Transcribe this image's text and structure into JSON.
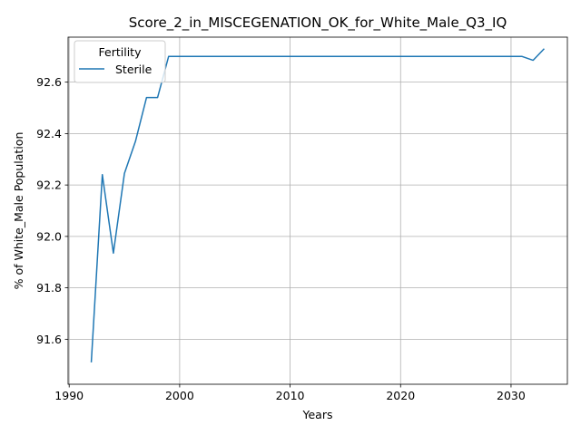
{
  "chart_data": {
    "type": "line",
    "title": "Score_2_in_MISCEGENATION_OK_for_White_Male_Q3_IQ",
    "xlabel": "Years",
    "ylabel": "% of White_Male Population",
    "xlim": [
      1989.9,
      2035.1
    ],
    "ylim": [
      91.425,
      92.775
    ],
    "xticks": [
      1990,
      2000,
      2010,
      2020,
      2030
    ],
    "xtick_labels": [
      "1990",
      "2000",
      "2010",
      "2020",
      "2030"
    ],
    "yticks": [
      91.6,
      91.8,
      92.0,
      92.2,
      92.4,
      92.6
    ],
    "ytick_labels": [
      "91.6",
      "91.8",
      "92.0",
      "92.2",
      "92.4",
      "92.6"
    ],
    "grid": true,
    "legend": {
      "title": "Fertility",
      "placement": "top-left"
    },
    "series": [
      {
        "name": "Sterile",
        "color": "#1f77b4",
        "x": [
          1992,
          1993,
          1994,
          1995,
          1996,
          1997,
          1998,
          1999,
          2000,
          2001,
          2002,
          2003,
          2004,
          2005,
          2006,
          2007,
          2008,
          2009,
          2010,
          2011,
          2012,
          2013,
          2014,
          2015,
          2016,
          2017,
          2018,
          2019,
          2020,
          2021,
          2022,
          2023,
          2024,
          2025,
          2026,
          2027,
          2028,
          2029,
          2030,
          2031,
          2032,
          2033
        ],
        "y": [
          91.51,
          92.24,
          91.935,
          92.245,
          92.37,
          92.54,
          92.54,
          92.7,
          92.7,
          92.7,
          92.7,
          92.7,
          92.7,
          92.7,
          92.7,
          92.7,
          92.7,
          92.7,
          92.7,
          92.7,
          92.7,
          92.7,
          92.7,
          92.7,
          92.7,
          92.7,
          92.7,
          92.7,
          92.7,
          92.7,
          92.7,
          92.7,
          92.7,
          92.7,
          92.7,
          92.7,
          92.7,
          92.7,
          92.7,
          92.7,
          92.685,
          92.73
        ]
      }
    ]
  }
}
